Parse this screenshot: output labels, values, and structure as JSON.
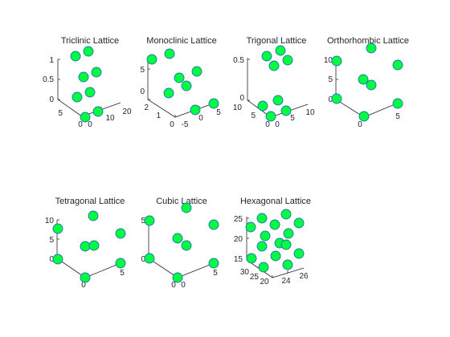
{
  "figure": {
    "background": "#ffffff"
  },
  "chart_data": [
    {
      "type": "scatter",
      "projection": "3d",
      "title": "Triclinic Lattice",
      "marker_color": "#00ff40",
      "marker_edge": "#1f6fb4",
      "tick_labels": [
        "1",
        "0.5",
        "0",
        "5",
        "0",
        "0",
        "10",
        "20"
      ],
      "points": [
        [
          0,
          0,
          1
        ],
        [
          1,
          0,
          1
        ],
        [
          0,
          1,
          0.5
        ],
        [
          1,
          1,
          0.5
        ],
        [
          0,
          0,
          0
        ],
        [
          1,
          0,
          0
        ],
        [
          0,
          1,
          0
        ],
        [
          1,
          1,
          0
        ]
      ]
    },
    {
      "type": "scatter",
      "projection": "3d",
      "title": "Monoclinic Lattice",
      "marker_color": "#00ff40",
      "marker_edge": "#1f6fb4",
      "tick_labels": [
        "5",
        "0",
        "2",
        "1",
        "0",
        "-5",
        "0",
        "5"
      ],
      "points": [
        [
          0,
          0,
          5
        ],
        [
          1,
          0,
          5
        ],
        [
          0,
          1,
          2.5
        ],
        [
          1,
          1,
          2.5
        ],
        [
          0,
          0,
          0
        ],
        [
          1,
          0,
          0
        ],
        [
          0,
          1,
          0
        ],
        [
          1,
          1,
          0
        ]
      ]
    },
    {
      "type": "scatter",
      "projection": "3d",
      "title": "Trigonal Lattice",
      "marker_color": "#00ff40",
      "marker_edge": "#1f6fb4",
      "tick_labels": [
        "0.5",
        "0",
        "10",
        "5",
        "0",
        "0",
        "5",
        "10"
      ],
      "points": [
        [
          0,
          0,
          0.5
        ],
        [
          1,
          0,
          0.5
        ],
        [
          0,
          1,
          0.5
        ],
        [
          1,
          1,
          0.3
        ],
        [
          0,
          0,
          0
        ],
        [
          1,
          0,
          0
        ],
        [
          0,
          1,
          0
        ],
        [
          1,
          1,
          0
        ]
      ]
    },
    {
      "type": "scatter",
      "projection": "3d",
      "title": "Orthorhombic Lattice",
      "marker_color": "#00ff40",
      "marker_edge": "#1f6fb4",
      "tick_labels": [
        "10",
        "5",
        "0",
        "0",
        "5"
      ],
      "points": [
        [
          0,
          0,
          10
        ],
        [
          1,
          0,
          10
        ],
        [
          0,
          1,
          10
        ],
        [
          1,
          1,
          5
        ],
        [
          0,
          0,
          5
        ],
        [
          0,
          0,
          0
        ],
        [
          1,
          0,
          0
        ],
        [
          0,
          1,
          0
        ]
      ]
    },
    {
      "type": "scatter",
      "projection": "3d",
      "title": "Tetragonal Lattice",
      "marker_color": "#00ff40",
      "marker_edge": "#1f6fb4",
      "tick_labels": [
        "10",
        "5",
        "0",
        "0",
        "5"
      ],
      "points": [
        [
          0,
          0,
          10
        ],
        [
          1,
          0,
          10
        ],
        [
          0,
          1,
          10
        ],
        [
          1,
          1,
          5
        ],
        [
          0,
          0,
          5
        ],
        [
          0,
          0,
          0
        ],
        [
          1,
          0,
          0
        ],
        [
          0,
          1,
          0
        ]
      ]
    },
    {
      "type": "scatter",
      "projection": "3d",
      "title": "Cubic Lattice",
      "marker_color": "#00ff40",
      "marker_edge": "#1f6fb4",
      "tick_labels": [
        "5",
        "0",
        "0",
        "0",
        "5"
      ],
      "points": [
        [
          0,
          0,
          5
        ],
        [
          1,
          0,
          5
        ],
        [
          0,
          1,
          5
        ],
        [
          1,
          1,
          2.5
        ],
        [
          0,
          0,
          2.5
        ],
        [
          0,
          0,
          0
        ],
        [
          1,
          0,
          0
        ],
        [
          0,
          1,
          0
        ]
      ]
    },
    {
      "type": "scatter",
      "projection": "3d",
      "title": "Hexagonal Lattice",
      "marker_color": "#00ff40",
      "marker_edge": "#1f6fb4",
      "tick_labels": [
        "25",
        "20",
        "15",
        "30",
        "25",
        "20",
        "24",
        "26"
      ],
      "points": [
        [
          25,
          20,
          26
        ],
        [
          24,
          20,
          25
        ],
        [
          26,
          22,
          24
        ],
        [
          25,
          22,
          22
        ],
        [
          24,
          23,
          21
        ],
        [
          26,
          23,
          20
        ],
        [
          25,
          24,
          19
        ],
        [
          24,
          24,
          18
        ],
        [
          26,
          24,
          17
        ],
        [
          25,
          25,
          16
        ],
        [
          24,
          25,
          15
        ],
        [
          26,
          26,
          14
        ],
        [
          25,
          26,
          13
        ],
        [
          24,
          27,
          12
        ]
      ]
    }
  ]
}
